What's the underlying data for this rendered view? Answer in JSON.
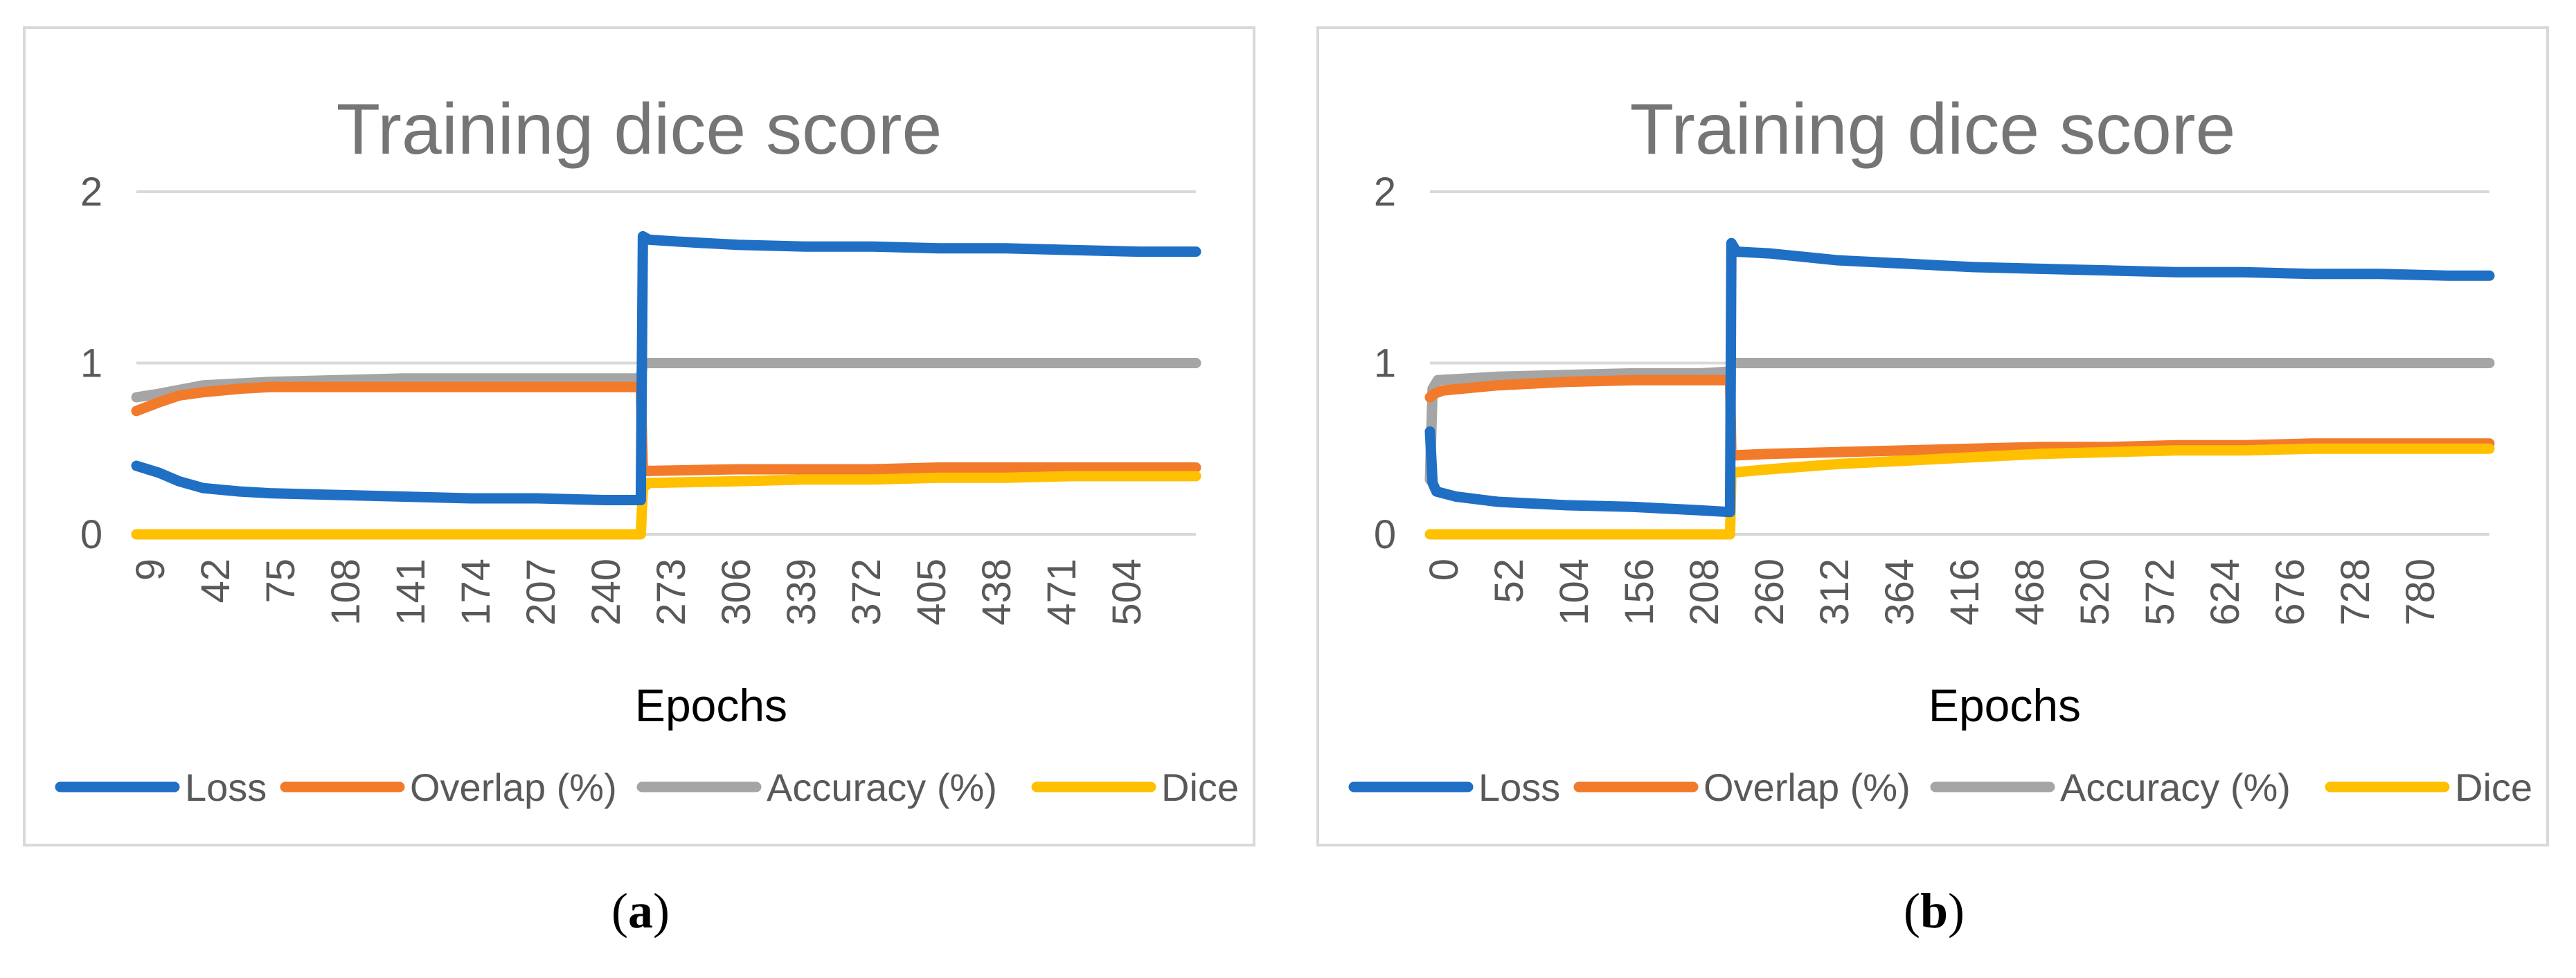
{
  "figure": {
    "caption_a_open": "(",
    "caption_a_letter": "a",
    "caption_a_close": ")",
    "caption_b_open": "(",
    "caption_b_letter": "b",
    "caption_b_close": ")"
  },
  "colors": {
    "Loss": "#1f6fc5",
    "Overlap (%)": "#f27a2b",
    "Accuracy (%)": "#a5a5a5",
    "Dice": "#ffc000",
    "text": "#595959",
    "title": "#757575",
    "grid": "#d9d9d9"
  },
  "chart_data": [
    {
      "type": "line",
      "title": "Training dice score",
      "xlabel": "Epochs",
      "ylabel": "",
      "ylim": [
        0,
        2
      ],
      "yticks": [
        "0",
        "1",
        "2"
      ],
      "xlim": [
        9,
        532
      ],
      "xticks": [
        "9",
        "42",
        "75",
        "108",
        "141",
        "174",
        "207",
        "240",
        "273",
        "306",
        "339",
        "372",
        "405",
        "438",
        "471",
        "504"
      ],
      "legend_position": "bottom",
      "grid": true,
      "series": [
        {
          "name": "Loss",
          "x": [
            9,
            20,
            30,
            42,
            60,
            75,
            108,
            141,
            174,
            207,
            240,
            258,
            259,
            262,
            275,
            290,
            306,
            339,
            372,
            405,
            438,
            471,
            504,
            532
          ],
          "values": [
            0.4,
            0.36,
            0.31,
            0.27,
            0.25,
            0.24,
            0.23,
            0.22,
            0.21,
            0.21,
            0.2,
            0.2,
            1.74,
            1.72,
            1.71,
            1.7,
            1.69,
            1.68,
            1.68,
            1.67,
            1.67,
            1.66,
            1.65,
            1.65
          ]
        },
        {
          "name": "Overlap (%)",
          "x": [
            9,
            20,
            30,
            42,
            60,
            75,
            108,
            141,
            174,
            207,
            240,
            258,
            259,
            262,
            306,
            339,
            372,
            405,
            438,
            471,
            504,
            532
          ],
          "values": [
            0.72,
            0.77,
            0.81,
            0.83,
            0.85,
            0.86,
            0.86,
            0.86,
            0.86,
            0.86,
            0.86,
            0.86,
            0.37,
            0.37,
            0.38,
            0.38,
            0.38,
            0.39,
            0.39,
            0.39,
            0.39,
            0.39
          ]
        },
        {
          "name": "Accuracy (%)",
          "x": [
            9,
            20,
            42,
            75,
            108,
            141,
            174,
            207,
            240,
            258,
            259,
            532
          ],
          "values": [
            0.8,
            0.82,
            0.87,
            0.89,
            0.9,
            0.91,
            0.91,
            0.91,
            0.91,
            0.91,
            1.0,
            1.0
          ]
        },
        {
          "name": "Dice",
          "x": [
            9,
            258,
            259,
            262,
            306,
            339,
            372,
            405,
            438,
            471,
            504,
            532
          ],
          "values": [
            0.0,
            0.0,
            0.27,
            0.3,
            0.31,
            0.32,
            0.32,
            0.33,
            0.33,
            0.34,
            0.34,
            0.34
          ]
        }
      ]
    },
    {
      "type": "line",
      "title": "Training dice score",
      "xlabel": "Epochs",
      "ylabel": "",
      "ylim": [
        0,
        2
      ],
      "yticks": [
        "0",
        "1",
        "2"
      ],
      "xlim": [
        0,
        812
      ],
      "xticks": [
        "0",
        "52",
        "104",
        "156",
        "208",
        "260",
        "312",
        "364",
        "416",
        "468",
        "520",
        "572",
        "624",
        "676",
        "728",
        "780"
      ],
      "legend_position": "bottom",
      "grid": true,
      "series": [
        {
          "name": "Loss",
          "x": [
            0,
            2,
            5,
            10,
            20,
            52,
            104,
            156,
            208,
            230,
            231,
            235,
            260,
            312,
            364,
            416,
            468,
            520,
            572,
            624,
            676,
            728,
            780,
            812
          ],
          "values": [
            0.6,
            0.3,
            0.25,
            0.24,
            0.22,
            0.19,
            0.17,
            0.16,
            0.14,
            0.13,
            1.7,
            1.65,
            1.64,
            1.6,
            1.58,
            1.56,
            1.55,
            1.54,
            1.53,
            1.53,
            1.52,
            1.52,
            1.51,
            1.51
          ]
        },
        {
          "name": "Overlap (%)",
          "x": [
            0,
            3,
            10,
            52,
            104,
            156,
            208,
            230,
            231,
            260,
            312,
            364,
            416,
            468,
            520,
            572,
            624,
            676,
            728,
            780,
            812
          ],
          "values": [
            0.8,
            0.82,
            0.84,
            0.87,
            0.89,
            0.9,
            0.9,
            0.9,
            0.46,
            0.47,
            0.48,
            0.49,
            0.5,
            0.51,
            0.51,
            0.52,
            0.52,
            0.53,
            0.53,
            0.53,
            0.53
          ]
        },
        {
          "name": "Accuracy (%)",
          "x": [
            0,
            2,
            6,
            52,
            104,
            156,
            208,
            230,
            231,
            812
          ],
          "values": [
            0.32,
            0.85,
            0.9,
            0.92,
            0.93,
            0.94,
            0.94,
            0.95,
            1.0,
            1.0
          ]
        },
        {
          "name": "Dice",
          "x": [
            0,
            230,
            231,
            260,
            312,
            364,
            416,
            468,
            520,
            572,
            624,
            676,
            728,
            780,
            812
          ],
          "values": [
            0.0,
            0.0,
            0.36,
            0.38,
            0.41,
            0.43,
            0.45,
            0.47,
            0.48,
            0.49,
            0.49,
            0.5,
            0.5,
            0.5,
            0.5
          ]
        }
      ]
    }
  ]
}
